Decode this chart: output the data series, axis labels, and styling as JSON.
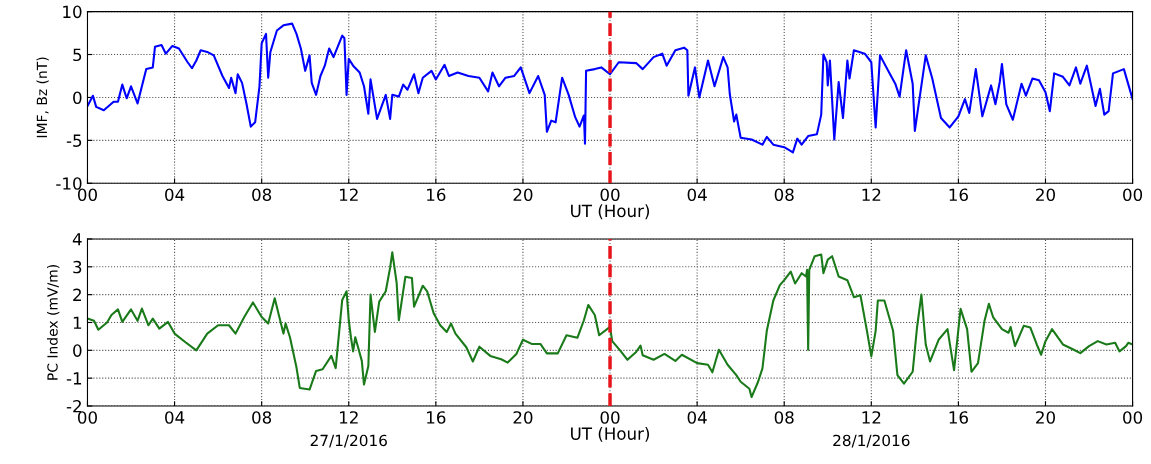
{
  "chart_data": [
    {
      "type": "line",
      "xlabel": "UT (Hour)",
      "ylabel": "IMF, Bz (nT)",
      "xlim": [
        0,
        48
      ],
      "ylim": [
        -10,
        10
      ],
      "xticks": [
        {
          "value": 0,
          "label": "00"
        },
        {
          "value": 4,
          "label": "04"
        },
        {
          "value": 8,
          "label": "08"
        },
        {
          "value": 12,
          "label": "12"
        },
        {
          "value": 16,
          "label": "16"
        },
        {
          "value": 20,
          "label": "20"
        },
        {
          "value": 24,
          "label": "00"
        },
        {
          "value": 28,
          "label": "04"
        },
        {
          "value": 32,
          "label": "08"
        },
        {
          "value": 36,
          "label": "12"
        },
        {
          "value": 40,
          "label": "16"
        },
        {
          "value": 44,
          "label": "20"
        },
        {
          "value": 48,
          "label": "00"
        }
      ],
      "yticks": [
        -10,
        -5,
        0,
        5,
        10
      ],
      "grid": true,
      "line_style": "solid",
      "ref_lines": [
        {
          "axis": "x",
          "value": 24,
          "color": "#e8141b",
          "line_style": "dashed"
        }
      ],
      "series": [
        {
          "color": "#0000ff",
          "x": [
            0,
            0.25,
            0.4,
            0.75,
            1.2,
            1.4,
            1.6,
            1.8,
            2.0,
            2.3,
            2.7,
            3.0,
            3.1,
            3.4,
            3.6,
            3.9,
            4.2,
            4.6,
            4.8,
            5.0,
            5.2,
            5.5,
            5.8,
            6.2,
            6.5,
            6.6,
            6.8,
            6.9,
            7.1,
            7.3,
            7.5,
            7.7,
            7.9,
            8.0,
            8.2,
            8.3,
            8.4,
            8.7,
            9.0,
            9.4,
            9.6,
            9.8,
            10.0,
            10.2,
            10.3,
            10.5,
            10.7,
            10.9,
            11.1,
            11.3,
            11.7,
            11.8,
            11.9,
            12.0,
            12.2,
            12.5,
            12.7,
            12.9,
            13.0,
            13.3,
            13.5,
            13.7,
            13.9,
            14.0,
            14.3,
            14.5,
            14.7,
            15.0,
            15.2,
            15.4,
            15.8,
            16.0,
            16.4,
            16.6,
            17.0,
            17.5,
            18.0,
            18.4,
            18.6,
            18.9,
            19.2,
            19.6,
            19.9,
            20.3,
            20.7,
            21.0,
            21.1,
            21.3,
            21.5,
            21.8,
            22.1,
            22.4,
            22.6,
            22.8,
            22.85,
            22.9,
            23.3,
            23.6,
            24.0,
            24.4,
            25.2,
            25.5,
            26.0,
            26.4,
            26.6,
            27.0,
            27.4,
            27.55,
            27.6,
            27.9,
            28.1,
            28.5,
            28.8,
            29.2,
            29.4,
            29.5,
            29.7,
            29.8,
            30.0,
            30.5,
            31.0,
            31.2,
            31.5,
            32.0,
            32.4,
            32.6,
            32.8,
            33.1,
            33.5,
            33.7,
            33.8,
            33.95,
            34.0,
            34.1,
            34.3,
            34.5,
            34.7,
            34.9,
            35.0,
            35.2,
            35.7,
            36.0,
            36.2,
            36.4,
            36.8,
            37.1,
            37.3,
            37.6,
            37.9,
            38.0,
            38.5,
            38.8,
            39.2,
            39.6,
            40.0,
            40.3,
            40.5,
            40.8,
            41.1,
            41.5,
            41.7,
            41.9,
            42.0,
            42.2,
            42.5,
            42.9,
            43.1,
            43.4,
            43.7,
            44.0,
            44.2,
            44.4,
            44.8,
            45.1,
            45.4,
            45.6,
            45.9,
            46.3,
            46.5,
            46.7,
            46.9,
            47.1,
            47.6,
            48.0
          ],
          "values": [
            -1.0,
            0.2,
            -1.1,
            -1.5,
            -0.5,
            -0.5,
            1.5,
            -0.1,
            1.3,
            -0.7,
            3.3,
            3.5,
            5.9,
            6.1,
            5.1,
            6.0,
            5.7,
            4.1,
            3.4,
            4.3,
            5.5,
            5.3,
            4.9,
            2.5,
            1.1,
            2.3,
            0.5,
            2.7,
            1.7,
            -0.7,
            -3.4,
            -2.9,
            1.3,
            6.3,
            7.4,
            2.3,
            5.3,
            7.8,
            8.4,
            8.6,
            7.4,
            5.7,
            3.1,
            4.9,
            1.7,
            0.3,
            2.5,
            3.7,
            5.7,
            4.7,
            7.2,
            6.9,
            0.3,
            4.5,
            3.7,
            2.9,
            1.3,
            -1.9,
            2.1,
            -2.5,
            -1.1,
            0.3,
            -2.5,
            0.3,
            0.1,
            1.5,
            0.9,
            2.7,
            0.5,
            2.3,
            3.1,
            2.1,
            3.8,
            2.5,
            2.9,
            2.5,
            2.3,
            0.7,
            2.9,
            1.3,
            2.3,
            2.5,
            3.5,
            0.5,
            2.5,
            0.3,
            -4.0,
            -2.7,
            -2.9,
            2.3,
            0.3,
            -2.3,
            -3.4,
            -2.1,
            -5.4,
            3.1,
            3.3,
            3.5,
            2.7,
            4.1,
            4.0,
            3.3,
            4.7,
            5.1,
            3.7,
            5.5,
            5.8,
            5.5,
            0.2,
            3.5,
            0.0,
            4.3,
            1.3,
            4.7,
            3.5,
            0.4,
            -2.8,
            -2.0,
            -4.7,
            -4.9,
            -5.5,
            -4.6,
            -5.5,
            -5.8,
            -6.4,
            -4.8,
            -5.5,
            -4.5,
            -4.3,
            -2.0,
            5.0,
            4.1,
            1.4,
            4.3,
            -4.9,
            1.8,
            -2.4,
            4.3,
            2.2,
            5.5,
            5.1,
            4.1,
            -3.5,
            4.9,
            3.0,
            1.6,
            0.1,
            5.5,
            1.6,
            -3.9,
            4.9,
            2.2,
            -2.4,
            -3.5,
            -2.2,
            -0.2,
            -1.8,
            3.3,
            -2.2,
            1.4,
            -0.8,
            1.8,
            3.9,
            -0.8,
            -2.6,
            1.6,
            0.2,
            2.2,
            2.0,
            0.6,
            -1.6,
            2.8,
            2.4,
            1.4,
            3.5,
            1.6,
            3.7,
            -1.0,
            1.0,
            -2.0,
            -1.6,
            2.8,
            3.3,
            -0.2
          ]
        }
      ]
    },
    {
      "type": "line",
      "xlabel": "UT (Hour)",
      "ylabel": "PC Index (mV/m)",
      "xlim": [
        0,
        48
      ],
      "ylim": [
        -2,
        4
      ],
      "xticks": [
        {
          "value": 0,
          "label": "00"
        },
        {
          "value": 4,
          "label": "04"
        },
        {
          "value": 8,
          "label": "08"
        },
        {
          "value": 12,
          "label": "12"
        },
        {
          "value": 16,
          "label": "16"
        },
        {
          "value": 20,
          "label": "20"
        },
        {
          "value": 24,
          "label": "00"
        },
        {
          "value": 28,
          "label": "04"
        },
        {
          "value": 32,
          "label": "08"
        },
        {
          "value": 36,
          "label": "12"
        },
        {
          "value": 40,
          "label": "16"
        },
        {
          "value": 44,
          "label": "20"
        },
        {
          "value": 48,
          "label": "00"
        }
      ],
      "yticks": [
        -2,
        -1,
        0,
        1,
        2,
        3,
        4
      ],
      "grid": true,
      "line_style": "solid",
      "annotations": [
        "27/1/2016",
        "28/1/2016"
      ],
      "ref_lines": [
        {
          "axis": "x",
          "value": 24,
          "color": "#e8141b",
          "line_style": "dashed"
        }
      ],
      "series": [
        {
          "color": "#1a7a1a",
          "x": [
            0.0,
            0.3,
            0.5,
            0.9,
            1.1,
            1.4,
            1.6,
            2.0,
            2.3,
            2.5,
            2.8,
            3.0,
            3.3,
            3.7,
            4.0,
            4.5,
            5.0,
            5.5,
            6.0,
            6.5,
            6.8,
            7.2,
            7.6,
            8.0,
            8.3,
            8.6,
            8.8,
            9.0,
            9.1,
            9.3,
            9.6,
            9.75,
            10.2,
            10.5,
            10.8,
            11.2,
            11.4,
            11.7,
            11.9,
            12.0,
            12.1,
            12.2,
            12.3,
            12.6,
            12.7,
            12.9,
            13.0,
            13.2,
            13.4,
            13.7,
            13.9,
            14.0,
            14.2,
            14.3,
            14.6,
            14.9,
            15.0,
            15.4,
            15.6,
            15.9,
            16.2,
            16.5,
            16.7,
            16.9,
            17.4,
            17.7,
            18.0,
            18.5,
            19.0,
            19.3,
            19.7,
            20.0,
            20.4,
            20.8,
            21.1,
            21.6,
            22.0,
            22.5,
            22.8,
            23.0,
            23.3,
            23.5,
            24.0,
            24.1,
            24.5,
            24.8,
            25.2,
            25.4,
            25.5,
            26.0,
            26.5,
            27.0,
            27.3,
            28.0,
            28.5,
            28.7,
            29.0,
            29.4,
            29.8,
            30.0,
            30.4,
            30.5,
            30.8,
            31.0,
            31.2,
            31.5,
            31.8,
            32.0,
            32.3,
            32.5,
            32.8,
            33.0,
            33.05,
            33.1,
            33.15,
            33.4,
            33.7,
            33.8,
            34.0,
            34.2,
            34.5,
            34.9,
            35.2,
            35.5,
            35.8,
            36.0,
            36.2,
            36.3,
            36.6,
            37.0,
            37.2,
            37.5,
            37.9,
            38.1,
            38.3,
            38.5,
            38.7,
            39.1,
            39.5,
            39.8,
            40.1,
            40.4,
            40.6,
            40.9,
            41.2,
            41.4,
            41.6,
            42.0,
            42.3,
            42.4,
            42.6,
            43.0,
            43.3,
            43.6,
            43.8,
            44.0,
            44.3,
            44.8,
            45.3,
            45.6,
            46.0,
            46.4,
            46.8,
            47.2,
            47.4,
            47.7,
            47.8,
            48.0
          ],
          "values": [
            1.14,
            1.06,
            0.74,
            1.0,
            1.27,
            1.47,
            1.02,
            1.47,
            1.06,
            1.5,
            0.9,
            1.14,
            0.78,
            1.02,
            0.6,
            0.29,
            0.0,
            0.6,
            0.9,
            0.9,
            0.6,
            1.2,
            1.72,
            1.2,
            0.96,
            1.87,
            1.23,
            0.6,
            0.96,
            0.47,
            -0.62,
            -1.35,
            -1.41,
            -0.74,
            -0.68,
            -0.2,
            -0.64,
            1.81,
            2.12,
            1.08,
            0.47,
            -0.04,
            0.47,
            -0.38,
            -1.23,
            -0.56,
            2.0,
            0.66,
            1.75,
            2.12,
            2.97,
            3.52,
            2.42,
            1.08,
            2.64,
            2.6,
            1.57,
            2.32,
            2.12,
            1.33,
            0.9,
            0.66,
            0.96,
            0.6,
            0.11,
            -0.4,
            0.13,
            -0.2,
            -0.32,
            -0.44,
            -0.13,
            0.38,
            0.23,
            0.23,
            -0.11,
            -0.11,
            0.54,
            0.45,
            1.08,
            1.63,
            1.27,
            0.54,
            0.84,
            0.33,
            -0.04,
            -0.34,
            -0.06,
            0.17,
            -0.18,
            -0.34,
            -0.13,
            -0.38,
            -0.16,
            -0.46,
            -0.52,
            -0.79,
            0.02,
            -0.52,
            -0.89,
            -1.13,
            -1.38,
            -1.68,
            -1.13,
            -0.65,
            0.7,
            1.79,
            2.34,
            2.52,
            2.83,
            2.4,
            2.77,
            2.65,
            2.89,
            0.02,
            2.89,
            3.38,
            3.44,
            2.77,
            3.26,
            3.38,
            2.65,
            2.52,
            1.91,
            1.98,
            0.7,
            -0.22,
            0.7,
            1.79,
            1.79,
            0.7,
            -0.89,
            -1.2,
            -0.77,
            0.82,
            2.0,
            0.21,
            -0.4,
            0.39,
            0.76,
            -0.71,
            1.49,
            0.76,
            -0.77,
            -0.46,
            1.06,
            1.67,
            1.18,
            0.76,
            0.63,
            0.84,
            0.15,
            0.88,
            0.82,
            0.21,
            -0.16,
            0.33,
            0.76,
            0.21,
            0.02,
            -0.1,
            0.15,
            0.33,
            0.21,
            0.27,
            -0.04,
            0.15,
            0.27,
            0.21
          ]
        }
      ]
    }
  ]
}
